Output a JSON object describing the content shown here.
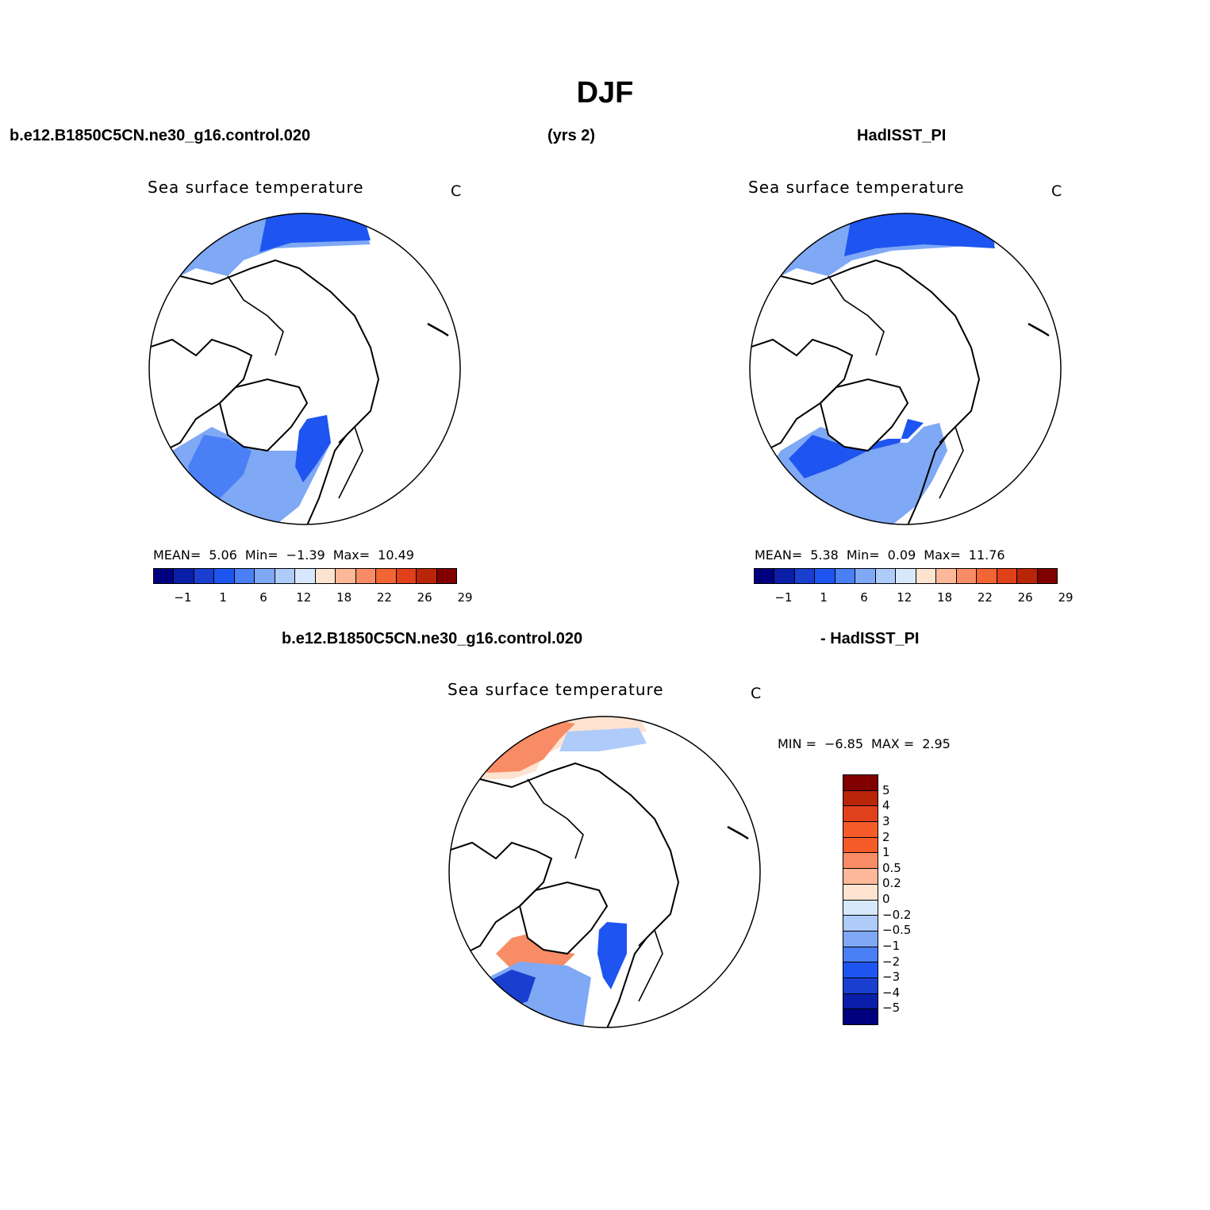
{
  "figure": {
    "title": "DJF",
    "header_left": "b.e12.B1850C5CN.ne30_g16.control.020",
    "header_center": "(yrs 2)",
    "header_right": "HadISST_PI",
    "diff_header_left": "b.e12.B1850C5CN.ne30_g16.control.020",
    "diff_header_right": "- HadISST_PI"
  },
  "panels": [
    {
      "id": "model",
      "title": "Sea surface temperature",
      "units": "C",
      "stats": {
        "mean_label": "MEAN=",
        "mean": "5.06",
        "min_label": "Min=",
        "min": "−1.39",
        "max_label": "Max=",
        "max": "10.49"
      }
    },
    {
      "id": "obs",
      "title": "Sea surface temperature",
      "units": "C",
      "stats": {
        "mean_label": "MEAN=",
        "mean": "5.38",
        "min_label": "Min=",
        "min": "0.09",
        "max_label": "Max=",
        "max": "11.76"
      }
    },
    {
      "id": "diff",
      "title": "Sea surface temperature",
      "units": "C",
      "stats": {
        "min_label": "MIN =",
        "min": "−6.85",
        "max_label": "MAX =",
        "max": "2.95"
      }
    }
  ],
  "sst_colorbar": {
    "colors": [
      "#00007f",
      "#0a1ea8",
      "#1a3fd0",
      "#1e55f0",
      "#4a7ff5",
      "#7fa8f5",
      "#aecbfa",
      "#d8e8fc",
      "#fde3d0",
      "#fcb898",
      "#f88c66",
      "#f26535",
      "#e0401a",
      "#b82508",
      "#800000"
    ],
    "labels": [
      "−1",
      "1",
      "6",
      "12",
      "18",
      "22",
      "26",
      "29"
    ]
  },
  "diff_colorbar": {
    "colors": [
      "#800000",
      "#b82508",
      "#e0401a",
      "#f65b2a",
      "#f88c66",
      "#fcb898",
      "#fde3d0",
      "#d8e8fc",
      "#aecbfa",
      "#7fa8f5",
      "#4a7ff5",
      "#1e55f0",
      "#1a3fd0",
      "#0a1ea8",
      "#00007f"
    ],
    "labels": [
      "5",
      "4",
      "3",
      "2",
      "1",
      "0.5",
      "0.2",
      "0",
      "−0.2",
      "−0.5",
      "−1",
      "−2",
      "−3",
      "−4",
      "−5"
    ]
  }
}
